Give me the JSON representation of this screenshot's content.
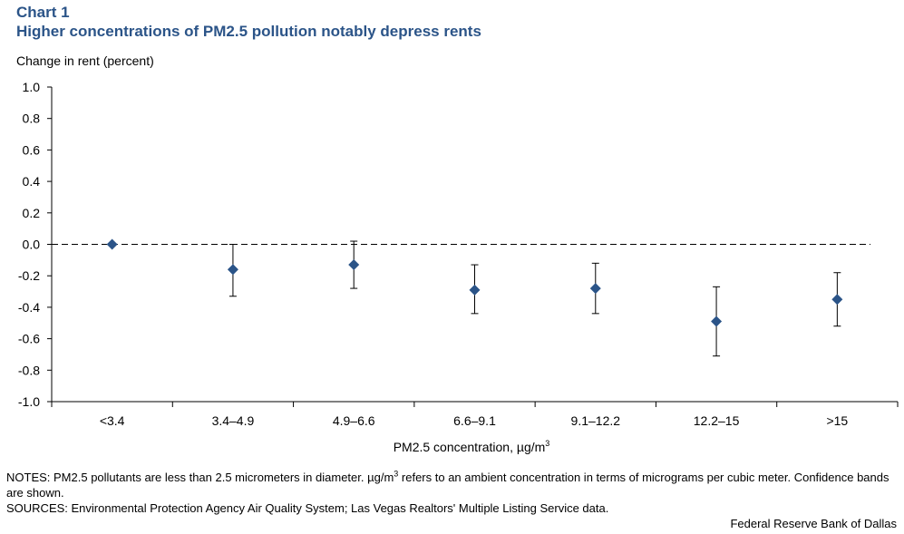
{
  "header": {
    "chart_label": "Chart 1",
    "title": "Higher concentrations of PM2.5 pollution notably depress rents"
  },
  "chart_data": {
    "type": "scatter",
    "title": "Higher concentrations of PM2.5 pollution notably depress rents",
    "ylabel": "Change in rent (percent)",
    "xlabel_text": "PM2.5 concentration,  µg/m",
    "xlabel_sup": "3",
    "ylim": [
      -1.0,
      1.0
    ],
    "yticks": [
      1.0,
      0.8,
      0.6,
      0.4,
      0.2,
      0.0,
      -0.2,
      -0.4,
      -0.6,
      -0.8,
      -1.0
    ],
    "ytick_labels": [
      "1.0",
      "0.8",
      "0.6",
      "0.4",
      "0.2",
      "0.0",
      "-0.2",
      "-0.4",
      "-0.6",
      "-0.8",
      "-1.0"
    ],
    "categories": [
      "<3.4",
      "3.4–4.9",
      "4.9–6.6",
      "6.6–9.1",
      "9.1–12.2",
      "12.2–15",
      ">15"
    ],
    "values": [
      0.0,
      -0.16,
      -0.13,
      -0.29,
      -0.28,
      -0.49,
      -0.35
    ],
    "ci_low": [
      null,
      -0.33,
      -0.28,
      -0.44,
      -0.44,
      -0.71,
      -0.52
    ],
    "ci_high": [
      null,
      0.0,
      0.02,
      -0.13,
      -0.12,
      -0.27,
      -0.18
    ],
    "reference_line": 0.0,
    "colors": {
      "marker": "#2b5488",
      "title": "#2b5488",
      "axis": "#000000"
    }
  },
  "notes": {
    "notes_text_1": "NOTES: PM2.5 pollutants are less than 2.5 micrometers in diameter. µg/m",
    "notes_sup": "3",
    "notes_text_2": " refers to an ambient concentration in terms of micrograms per cubic meter. Confidence bands are shown.",
    "sources": "SOURCES: Environmental Protection Agency Air Quality System; Las Vegas Realtors' Multiple  Listing Service data."
  },
  "footer": {
    "credit": "Federal Reserve Bank of Dallas"
  }
}
